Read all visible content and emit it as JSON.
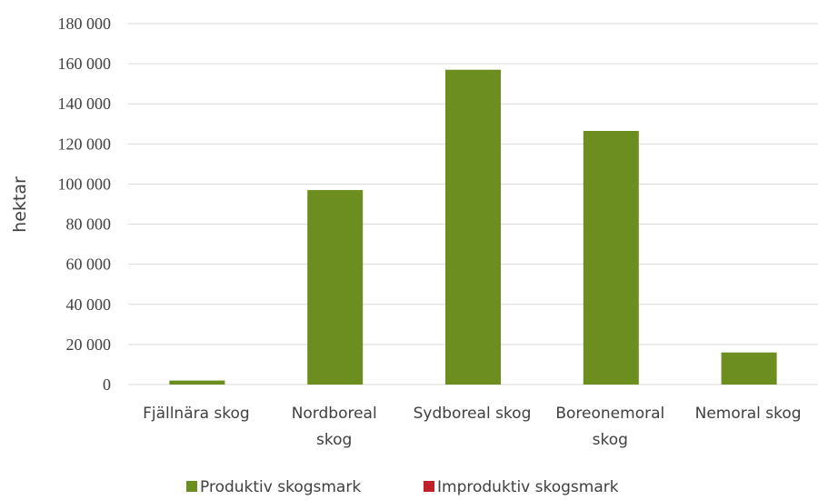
{
  "chart_data": {
    "type": "bar",
    "title": "",
    "xlabel": "",
    "ylabel": "hektar",
    "ylim": [
      0,
      180000
    ],
    "yticks": [
      0,
      20000,
      40000,
      60000,
      80000,
      100000,
      120000,
      140000,
      160000,
      180000
    ],
    "ytick_labels": [
      "0",
      "20 000",
      "40 000",
      "60 000",
      "80 000",
      "100 000",
      "120 000",
      "140 000",
      "160 000",
      "180 000"
    ],
    "grid": true,
    "legend_position": "bottom",
    "categories": [
      [
        "Fjällnära skog"
      ],
      [
        "Nordboreal",
        "skog"
      ],
      [
        "Sydboreal skog"
      ],
      [
        "Boreonemoral",
        "skog"
      ],
      [
        "Nemoral skog"
      ]
    ],
    "series": [
      {
        "name": "Produktiv skogsmark",
        "color": "#6b8e1e",
        "values": [
          2000,
          97000,
          157000,
          126500,
          16000
        ]
      },
      {
        "name": "Improduktiv skogsmark",
        "color": "#c0202a",
        "values": [
          0,
          0,
          0,
          0,
          0
        ]
      }
    ]
  }
}
